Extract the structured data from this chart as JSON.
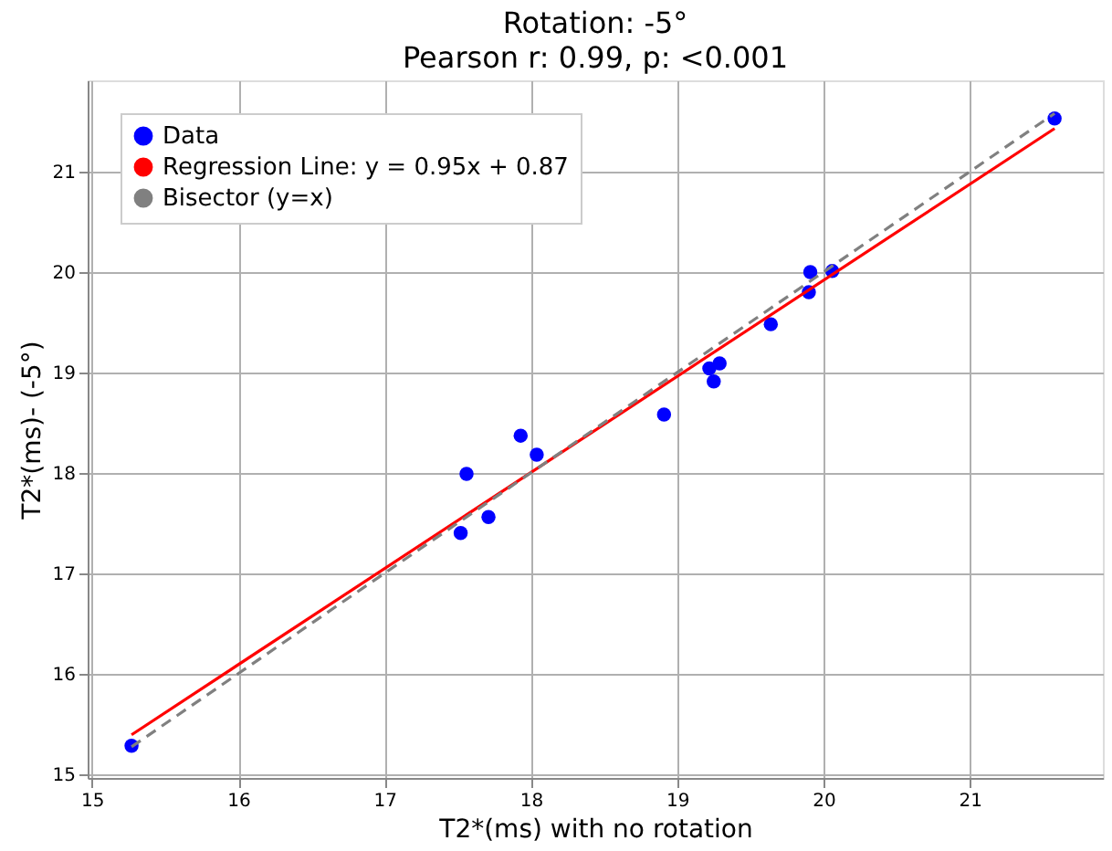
{
  "chart_data": {
    "type": "scatter",
    "title": "Rotation: -5°",
    "subtitle": "Pearson r: 0.99, p: <0.001",
    "xlabel": "T2*(ms) with no rotation",
    "ylabel": "T2*(ms)- (-5°)",
    "xlim": [
      14.97,
      21.91
    ],
    "ylim": [
      14.96,
      21.91
    ],
    "xticks": [
      15,
      16,
      17,
      18,
      19,
      20,
      21
    ],
    "yticks": [
      15,
      16,
      17,
      18,
      19,
      20,
      21
    ],
    "grid": true,
    "legend": "top left",
    "marker": "circle",
    "series": [
      {
        "name": "Data",
        "color": "#0000ff",
        "x": [
          15.27,
          17.52,
          17.56,
          17.71,
          17.93,
          18.04,
          18.91,
          19.22,
          19.25,
          19.29,
          19.64,
          19.9,
          19.91,
          20.06,
          21.58
        ],
        "values": [
          15.28,
          17.4,
          17.99,
          17.56,
          18.37,
          18.18,
          18.58,
          19.04,
          18.91,
          19.09,
          19.48,
          19.8,
          20.0,
          20.01,
          21.53
        ]
      },
      {
        "name": "Regression Line: y = 0.95x + 0.87",
        "type": "line",
        "color": "#ff0000",
        "line_style": "solid",
        "marker": "none",
        "x": [
          15.27,
          21.58
        ],
        "values": [
          15.39,
          21.43
        ]
      },
      {
        "name": "Bisector (y=x)",
        "type": "line",
        "color": "#808080",
        "line_style": "dashed",
        "marker": "none",
        "x": [
          15.27,
          21.58
        ],
        "values": [
          15.27,
          21.58
        ]
      }
    ]
  }
}
